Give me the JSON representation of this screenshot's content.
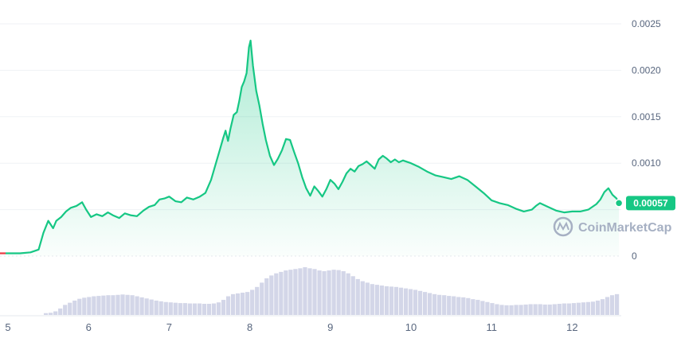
{
  "chart_data": {
    "type": "area",
    "title": "",
    "xlabel": "",
    "ylabel": "",
    "x_ticks": [
      "5",
      "6",
      "7",
      "8",
      "9",
      "10",
      "11",
      "12"
    ],
    "y_ticks": [
      "0.0025",
      "0.0020",
      "0.0015",
      "0.0010",
      "0.00057",
      "0"
    ],
    "ylim": [
      0,
      0.0027
    ],
    "xlim": [
      4.97,
      12.58
    ],
    "grid": true,
    "last_price_label": "0.00057",
    "watermark": "CoinMarketCap",
    "colors": {
      "line": "#16c784",
      "start_segment": "#ea3943",
      "volume": "#d3d6e8",
      "badge": "#16c784"
    },
    "series": [
      {
        "values_x": [
          4.97,
          5.05,
          5.15,
          5.28,
          5.38,
          5.44,
          5.5,
          5.56,
          5.6,
          5.66,
          5.72,
          5.78,
          5.85,
          5.92,
          5.97,
          6.03,
          6.1,
          6.17,
          6.24,
          6.3,
          6.38,
          6.45,
          6.52,
          6.6,
          6.68,
          6.75,
          6.82,
          6.88,
          6.94,
          7.0,
          7.08,
          7.15,
          7.22,
          7.3,
          7.38,
          7.45,
          7.52,
          7.58,
          7.63,
          7.67,
          7.7,
          7.73,
          7.76,
          7.8,
          7.84,
          7.87,
          7.9,
          7.93,
          7.96,
          7.99,
          8.01,
          8.04,
          8.08,
          8.12,
          8.16,
          8.2,
          8.25,
          8.3,
          8.35,
          8.4,
          8.45,
          8.5,
          8.55,
          8.6,
          8.65,
          8.7,
          8.75,
          8.8,
          8.85,
          8.9,
          8.95,
          9.0,
          9.05,
          9.1,
          9.15,
          9.2,
          9.25,
          9.3,
          9.35,
          9.4,
          9.45,
          9.5,
          9.55,
          9.6,
          9.65,
          9.7,
          9.75,
          9.8,
          9.85,
          9.9,
          10.0,
          10.1,
          10.2,
          10.3,
          10.4,
          10.5,
          10.6,
          10.7,
          10.8,
          10.9,
          10.95,
          11.0,
          11.1,
          11.2,
          11.3,
          11.4,
          11.5,
          11.55,
          11.6,
          11.7,
          11.8,
          11.9,
          12.0,
          12.1,
          12.2,
          12.3,
          12.35,
          12.4,
          12.45,
          12.5,
          12.55,
          12.58
        ],
        "values": [
          3e-05,
          3e-05,
          3e-05,
          4e-05,
          7e-05,
          0.00025,
          0.00038,
          0.0003,
          0.00038,
          0.00042,
          0.00048,
          0.00052,
          0.00054,
          0.00058,
          0.0005,
          0.00042,
          0.00045,
          0.00043,
          0.00047,
          0.00044,
          0.00041,
          0.00046,
          0.00044,
          0.00043,
          0.00049,
          0.00053,
          0.00055,
          0.00061,
          0.00062,
          0.00064,
          0.00059,
          0.00058,
          0.00063,
          0.00061,
          0.00064,
          0.00068,
          0.00082,
          0.001,
          0.00115,
          0.00127,
          0.00135,
          0.00124,
          0.00137,
          0.00152,
          0.00155,
          0.00167,
          0.00182,
          0.00188,
          0.00197,
          0.00225,
          0.00232,
          0.00205,
          0.00178,
          0.00162,
          0.00142,
          0.00125,
          0.00108,
          0.00098,
          0.00105,
          0.00114,
          0.00126,
          0.00125,
          0.00112,
          0.001,
          0.00085,
          0.00073,
          0.00065,
          0.00075,
          0.0007,
          0.00064,
          0.00072,
          0.00082,
          0.00078,
          0.00072,
          0.0008,
          0.00089,
          0.00094,
          0.00091,
          0.00097,
          0.00099,
          0.00102,
          0.00098,
          0.00094,
          0.00104,
          0.00108,
          0.00105,
          0.00101,
          0.00104,
          0.00101,
          0.00103,
          0.001,
          0.00096,
          0.00091,
          0.00087,
          0.00085,
          0.00083,
          0.00086,
          0.00082,
          0.00075,
          0.00068,
          0.00064,
          0.0006,
          0.00057,
          0.00055,
          0.00051,
          0.00048,
          0.0005,
          0.00054,
          0.00057,
          0.00053,
          0.00049,
          0.00047,
          0.00048,
          0.00048,
          0.0005,
          0.00056,
          0.00061,
          0.00069,
          0.00073,
          0.00066,
          0.00062,
          0.00057
        ]
      }
    ],
    "volume": {
      "values": [
        0.05,
        0.06,
        0.1,
        0.18,
        0.28,
        0.34,
        0.4,
        0.45,
        0.48,
        0.5,
        0.52,
        0.53,
        0.54,
        0.55,
        0.55,
        0.56,
        0.57,
        0.56,
        0.55,
        0.52,
        0.49,
        0.46,
        0.43,
        0.4,
        0.38,
        0.36,
        0.35,
        0.34,
        0.33,
        0.33,
        0.32,
        0.32,
        0.32,
        0.31,
        0.31,
        0.32,
        0.35,
        0.42,
        0.52,
        0.58,
        0.6,
        0.62,
        0.64,
        0.7,
        0.78,
        0.9,
        1.02,
        1.1,
        1.16,
        1.2,
        1.24,
        1.26,
        1.28,
        1.3,
        1.33,
        1.3,
        1.28,
        1.24,
        1.22,
        1.24,
        1.26,
        1.25,
        1.22,
        1.16,
        1.08,
        1.0,
        0.94,
        0.9,
        0.86,
        0.84,
        0.82,
        0.8,
        0.79,
        0.78,
        0.76,
        0.74,
        0.72,
        0.7,
        0.67,
        0.64,
        0.61,
        0.58,
        0.56,
        0.55,
        0.53,
        0.52,
        0.5,
        0.49,
        0.47,
        0.44,
        0.42,
        0.39,
        0.36,
        0.33,
        0.3,
        0.28,
        0.27,
        0.27,
        0.28,
        0.28,
        0.29,
        0.3,
        0.3,
        0.3,
        0.29,
        0.29,
        0.3,
        0.31,
        0.32,
        0.32,
        0.33,
        0.34,
        0.35,
        0.36,
        0.37,
        0.4,
        0.44,
        0.5,
        0.55,
        0.58
      ]
    }
  }
}
